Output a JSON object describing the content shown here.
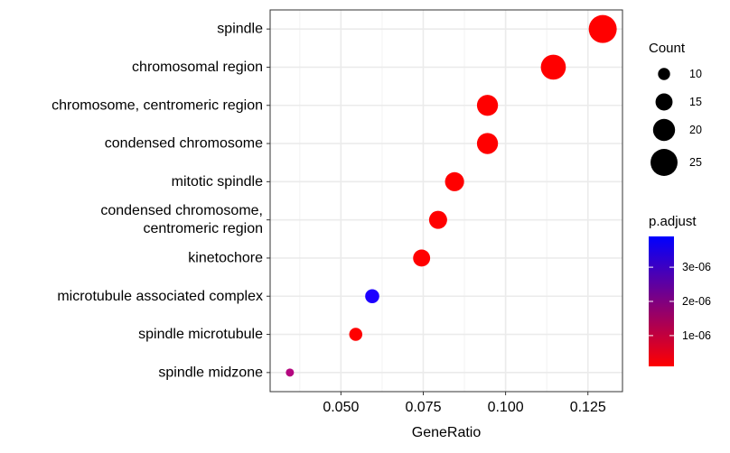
{
  "chart_data": {
    "type": "scatter",
    "title": "",
    "xlabel": "GeneRatio",
    "ylabel": "",
    "xlim": [
      0.0285,
      0.1355
    ],
    "x_ticks": [
      0.05,
      0.075,
      0.1,
      0.125
    ],
    "x_tick_labels": [
      "0.050",
      "0.075",
      "0.100",
      "0.125"
    ],
    "grid": true,
    "legend_position": "right",
    "points": [
      {
        "term": [
          "spindle midzone"
        ],
        "gene_ratio": 0.0345,
        "count": 6,
        "p_adjust": 2.5e-06,
        "color": "#b4077f"
      },
      {
        "term": [
          "spindle microtubule"
        ],
        "gene_ratio": 0.0545,
        "count": 11,
        "p_adjust": 1e-07,
        "color": "#ff0000"
      },
      {
        "term": [
          "microtubule associated complex"
        ],
        "gene_ratio": 0.0595,
        "count": 12,
        "p_adjust": 3.9e-06,
        "color": "#1d00ff"
      },
      {
        "term": [
          "kinetochore"
        ],
        "gene_ratio": 0.0745,
        "count": 15,
        "p_adjust": 1e-07,
        "color": "#ff0000"
      },
      {
        "term": [
          "condensed chromosome,",
          "centromeric region"
        ],
        "gene_ratio": 0.0795,
        "count": 16,
        "p_adjust": 1e-07,
        "color": "#ff0000"
      },
      {
        "term": [
          "mitotic spindle"
        ],
        "gene_ratio": 0.0845,
        "count": 17,
        "p_adjust": 1e-07,
        "color": "#ff0000"
      },
      {
        "term": [
          "condensed chromosome"
        ],
        "gene_ratio": 0.0945,
        "count": 19,
        "p_adjust": 1e-07,
        "color": "#ff0000"
      },
      {
        "term": [
          "chromosome, centromeric region"
        ],
        "gene_ratio": 0.0945,
        "count": 19,
        "p_adjust": 1e-07,
        "color": "#ff0000"
      },
      {
        "term": [
          "chromosomal region"
        ],
        "gene_ratio": 0.1145,
        "count": 23,
        "p_adjust": 1e-07,
        "color": "#ff0000"
      },
      {
        "term": [
          "spindle"
        ],
        "gene_ratio": 0.1295,
        "count": 26,
        "p_adjust": 1e-07,
        "color": "#ff0000"
      }
    ],
    "legend_size": {
      "title": "Count",
      "counts": [
        10,
        15,
        20,
        25
      ],
      "labels": [
        "10",
        "15",
        "20",
        "25"
      ]
    },
    "legend_color": {
      "title": "p.adjust",
      "range": [
        1e-07,
        3.9e-06
      ],
      "low_color": "#ff0000",
      "high_color": "#0000ff",
      "ticks": [
        1e-06,
        2e-06,
        3e-06
      ],
      "tick_labels": [
        "1e-06",
        "2e-06",
        "3e-06"
      ]
    }
  }
}
